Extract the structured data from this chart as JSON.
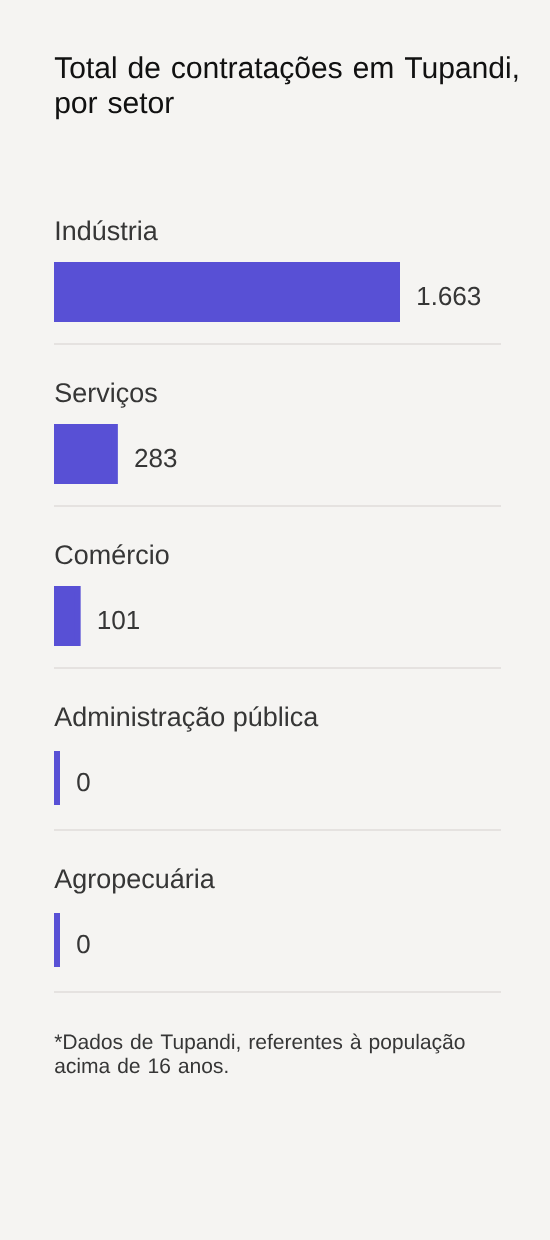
{
  "chart_data": {
    "type": "bar",
    "orientation": "horizontal",
    "title": "Total de contratações em Tupandi, por setor",
    "categories": [
      "Indústria",
      "Serviços",
      "Comércio",
      "Administração pública",
      "Agropecuária"
    ],
    "values": [
      1663,
      283,
      101,
      0,
      0
    ],
    "value_labels": [
      "1.663",
      "283",
      "101",
      "0",
      "0"
    ],
    "color": "#5850d5",
    "annotations": [
      "*Dados de Tupandi, referentes à população acima de 16 anos."
    ]
  }
}
